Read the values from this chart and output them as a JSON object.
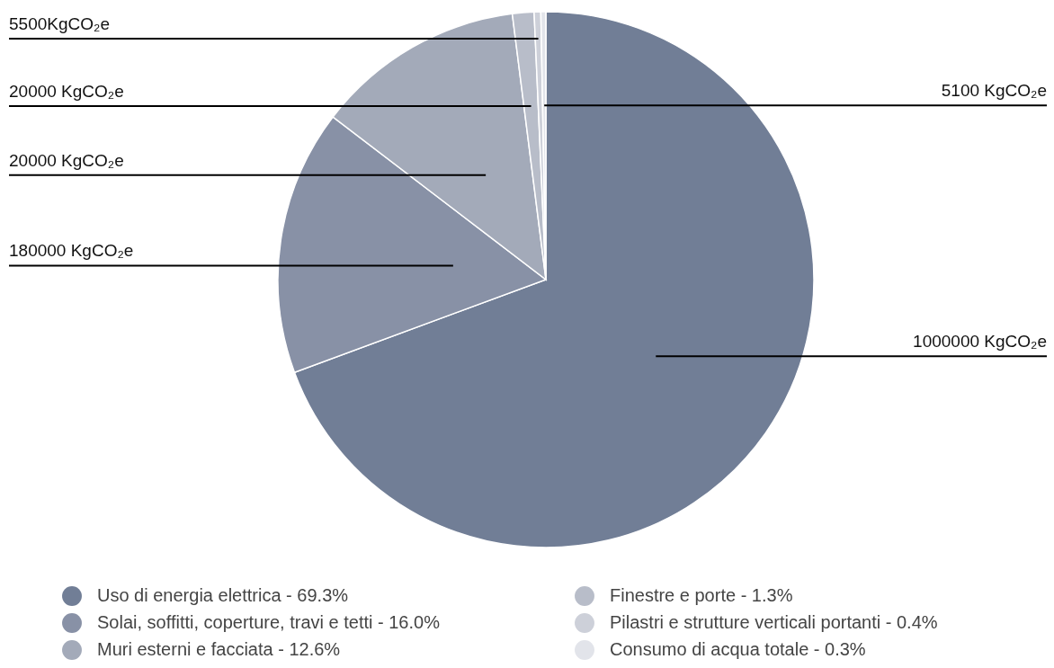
{
  "chart_data": {
    "type": "pie",
    "categories": [
      "Uso di energia elettrica - 69.3%",
      "Solai, soffitti, coperture, travi e tetti - 16.0%",
      "Muri esterni e facciata - 12.6%",
      "Finestre e porte - 1.3%",
      "Pilastri e strutture verticali portanti - 0.4%",
      "Consumo di acqua totale - 0.3%"
    ],
    "values": [
      69.3,
      16.0,
      12.6,
      1.3,
      0.4,
      0.3
    ],
    "colors": [
      "#717e96",
      "#8891a6",
      "#a3aab9",
      "#b8bdc9",
      "#cdd0d9",
      "#e2e4ea"
    ],
    "annotations": [
      "1000000 KgCO₂e",
      "180000 KgCO₂e",
      "20000 KgCO₂e",
      "20000 KgCO₂e",
      "5500KgCO₂e",
      "5100 KgCO₂e"
    ],
    "legend": "bottom"
  }
}
